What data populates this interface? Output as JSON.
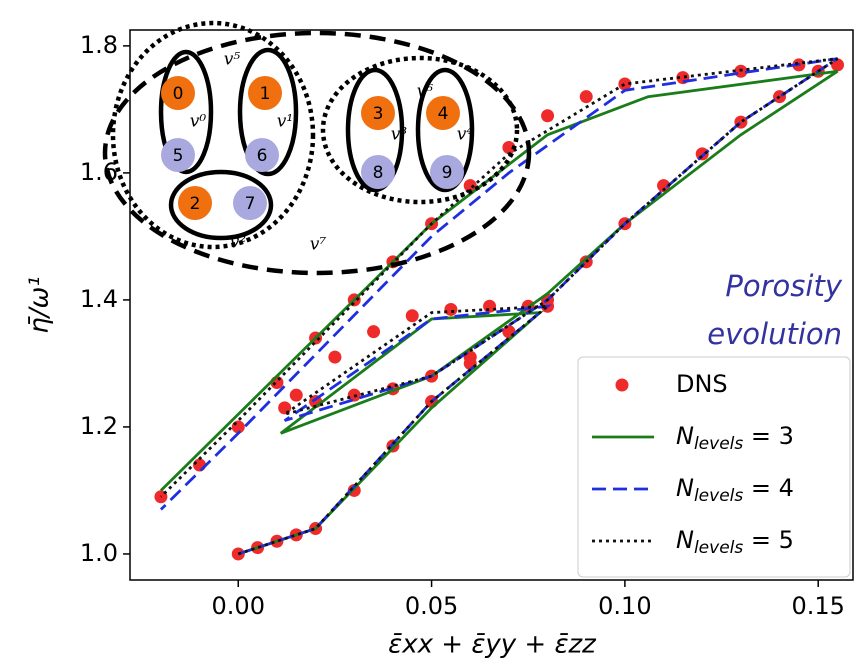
{
  "chart_data": {
    "type": "line",
    "xlabel": "ε̄xx + ε̄yy + ε̄zz",
    "ylabel": "η̄/ω¹",
    "annotation": [
      "Porosity",
      "evolution"
    ],
    "xlim": [
      -0.028,
      0.159
    ],
    "ylim": [
      0.959,
      1.825
    ],
    "xticks": [
      {
        "value": 0,
        "label": "0.00"
      },
      0.05,
      {
        "value": 0.1,
        "label": "0.10"
      },
      0.15
    ],
    "yticks": [
      {
        "value": 1,
        "label": "1.0"
      },
      1.2,
      1.4,
      1.6,
      1.8
    ],
    "legend": "lower right",
    "series": [
      {
        "name": "DNS",
        "color": "#ee2a2a",
        "style": "markers",
        "x": [
          0,
          0.005,
          0.01,
          0.015,
          0.02,
          0.03,
          0.04,
          0.05,
          0.06,
          0.07,
          0.08,
          0.075,
          0.065,
          0.055,
          0.045,
          0.035,
          0.025,
          0.015,
          0.012,
          0.02,
          0.03,
          0.04,
          0.05,
          0.06,
          0.07,
          0.08,
          0.09,
          0.1,
          0.11,
          0.12,
          0.13,
          0.14,
          0.15,
          0.155,
          0.145,
          0.13,
          0.115,
          0.1,
          0.09,
          0.08,
          0.07,
          0.06,
          0.05,
          0.04,
          0.03,
          0.02,
          0.01,
          0,
          -0.01,
          -0.02
        ],
        "values": [
          1.0,
          1.01,
          1.02,
          1.03,
          1.04,
          1.1,
          1.17,
          1.24,
          1.3,
          1.35,
          1.39,
          1.39,
          1.39,
          1.385,
          1.375,
          1.35,
          1.31,
          1.25,
          1.23,
          1.24,
          1.25,
          1.26,
          1.28,
          1.31,
          1.35,
          1.4,
          1.46,
          1.52,
          1.58,
          1.63,
          1.68,
          1.72,
          1.76,
          1.77,
          1.77,
          1.76,
          1.75,
          1.74,
          1.72,
          1.69,
          1.64,
          1.58,
          1.52,
          1.46,
          1.4,
          1.34,
          1.27,
          1.2,
          1.14,
          1.09
        ]
      },
      {
        "name": "Nlevels = 3",
        "color": "#1a7d1a",
        "style": "solid",
        "x": [
          0,
          0.02,
          0.05,
          0.078,
          0.05,
          0.011,
          0.05,
          0.08,
          0.1,
          0.13,
          0.155,
          0.106,
          0.08,
          0.05,
          0,
          -0.02
        ],
        "values": [
          1.0,
          1.04,
          1.23,
          1.38,
          1.37,
          1.19,
          1.28,
          1.41,
          1.52,
          1.66,
          1.76,
          1.72,
          1.66,
          1.52,
          1.22,
          1.1
        ]
      },
      {
        "name": "Nlevels = 4",
        "color": "#1f2fe0",
        "style": "dashed",
        "x": [
          0,
          0.02,
          0.05,
          0.08,
          0.05,
          0.012,
          0.05,
          0.08,
          0.1,
          0.13,
          0.155,
          0.1,
          0.07,
          0.05,
          0,
          -0.02
        ],
        "values": [
          1.0,
          1.04,
          1.24,
          1.39,
          1.37,
          1.21,
          1.28,
          1.4,
          1.52,
          1.68,
          1.78,
          1.73,
          1.6,
          1.5,
          1.19,
          1.07
        ]
      },
      {
        "name": "Nlevels = 5",
        "color": "#111111",
        "style": "dotted",
        "x": [
          0,
          0.02,
          0.05,
          0.08,
          0.05,
          0.012,
          0.05,
          0.08,
          0.1,
          0.13,
          0.155,
          0.1,
          0.07,
          0.05,
          0,
          -0.02
        ],
        "values": [
          1.0,
          1.04,
          1.24,
          1.39,
          1.38,
          1.22,
          1.28,
          1.4,
          1.52,
          1.68,
          1.78,
          1.74,
          1.63,
          1.52,
          1.21,
          1.09
        ]
      }
    ],
    "inset": {
      "nodes": [
        "0",
        "1",
        "2",
        "3",
        "4",
        "5",
        "6",
        "7",
        "8",
        "9"
      ],
      "groups": [
        "v⁰",
        "v¹",
        "v²",
        "v³",
        "v⁴",
        "v⁵",
        "v⁶",
        "v⁷"
      ]
    }
  }
}
